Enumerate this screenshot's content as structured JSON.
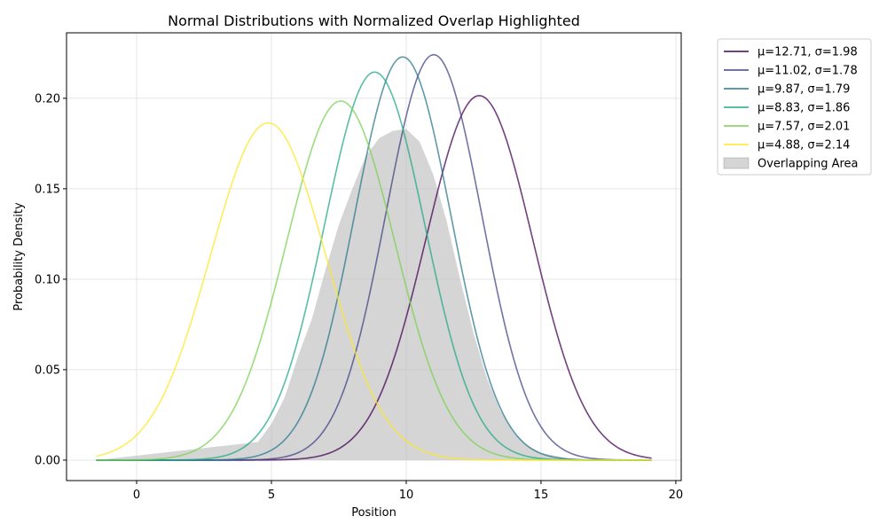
{
  "chart_data": {
    "type": "line",
    "title": "Normal Distributions with Normalized Overlap Highlighted",
    "xlabel": "Position",
    "ylabel": "Probability Density",
    "xlim": [
      -2.6,
      20.2
    ],
    "ylim": [
      -0.0113,
      0.2362
    ],
    "x_range": [
      -1.5,
      19.1
    ],
    "xticks": [
      0,
      5,
      10,
      15,
      20
    ],
    "yticks": [
      0.0,
      0.05,
      0.1,
      0.15,
      0.2
    ],
    "xtick_labels": [
      "0",
      "5",
      "10",
      "15",
      "20"
    ],
    "ytick_labels": [
      "0.00",
      "0.05",
      "0.10",
      "0.15",
      "0.20"
    ],
    "grid": true,
    "legend_position": "outside-top-right",
    "series": [
      {
        "name": "μ=12.71, σ=1.98",
        "mu": 12.71,
        "sigma": 1.98,
        "color": "#440154"
      },
      {
        "name": "μ=11.02, σ=1.78",
        "mu": 11.02,
        "sigma": 1.78,
        "color": "#414487"
      },
      {
        "name": "μ=9.87, σ=1.79",
        "mu": 9.87,
        "sigma": 1.79,
        "color": "#2a788e"
      },
      {
        "name": "μ=8.83, σ=1.86",
        "mu": 8.83,
        "sigma": 1.86,
        "color": "#22a884"
      },
      {
        "name": "μ=7.57, σ=2.01",
        "mu": 7.57,
        "sigma": 2.01,
        "color": "#7ad151"
      },
      {
        "name": "μ=4.88, σ=2.14",
        "mu": 4.88,
        "sigma": 2.14,
        "color": "#fde725"
      }
    ],
    "overlap_area": {
      "name": "Overlapping Area",
      "color": "#bfbfbf",
      "x": [
        -1.5,
        4.5,
        5.0,
        5.5,
        6.0,
        6.5,
        7.0,
        7.5,
        8.0,
        8.5,
        9.0,
        9.5,
        10.0,
        10.5,
        11.0,
        11.5,
        12.0,
        12.5,
        13.0,
        13.5,
        14.0,
        14.5,
        15.0,
        16.0,
        17.0,
        19.1
      ],
      "y": [
        0.0,
        0.01,
        0.02,
        0.035,
        0.058,
        0.078,
        0.105,
        0.13,
        0.15,
        0.168,
        0.178,
        0.182,
        0.183,
        0.176,
        0.158,
        0.132,
        0.1,
        0.07,
        0.045,
        0.027,
        0.015,
        0.008,
        0.004,
        0.001,
        0.0,
        0.0
      ]
    }
  }
}
